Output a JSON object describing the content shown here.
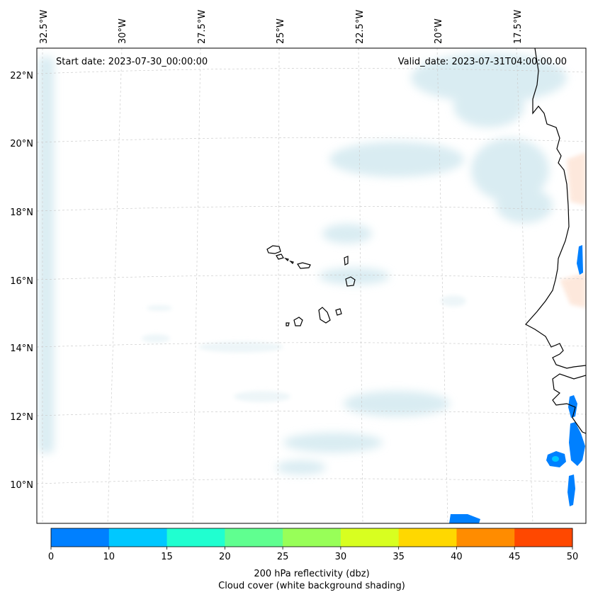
{
  "map": {
    "start_date": "Start date: 2023-07-30_00:00:00",
    "valid_date": "Valid_date: 2023-07-31T04:00:00.00",
    "lat_labels": [
      "22°N",
      "20°N",
      "18°N",
      "16°N",
      "14°N",
      "12°N",
      "10°N"
    ],
    "lon_labels": [
      "32.5°W",
      "30°W",
      "27.5°W",
      "25°W",
      "22.5°W",
      "20°W",
      "17.5°W"
    ]
  },
  "colorbar": {
    "ticks": [
      "0",
      "10",
      "15",
      "20",
      "25",
      "30",
      "35",
      "40",
      "45",
      "50"
    ],
    "colors": [
      "#0080ff",
      "#00c8ff",
      "#20ffd0",
      "#60ff90",
      "#98ff58",
      "#d8ff20",
      "#ffd800",
      "#ff8c00",
      "#ff4800"
    ],
    "label_line1": "200 hPa reflectivity (dbz)",
    "label_line2": "Cloud cover (white background shading)"
  }
}
